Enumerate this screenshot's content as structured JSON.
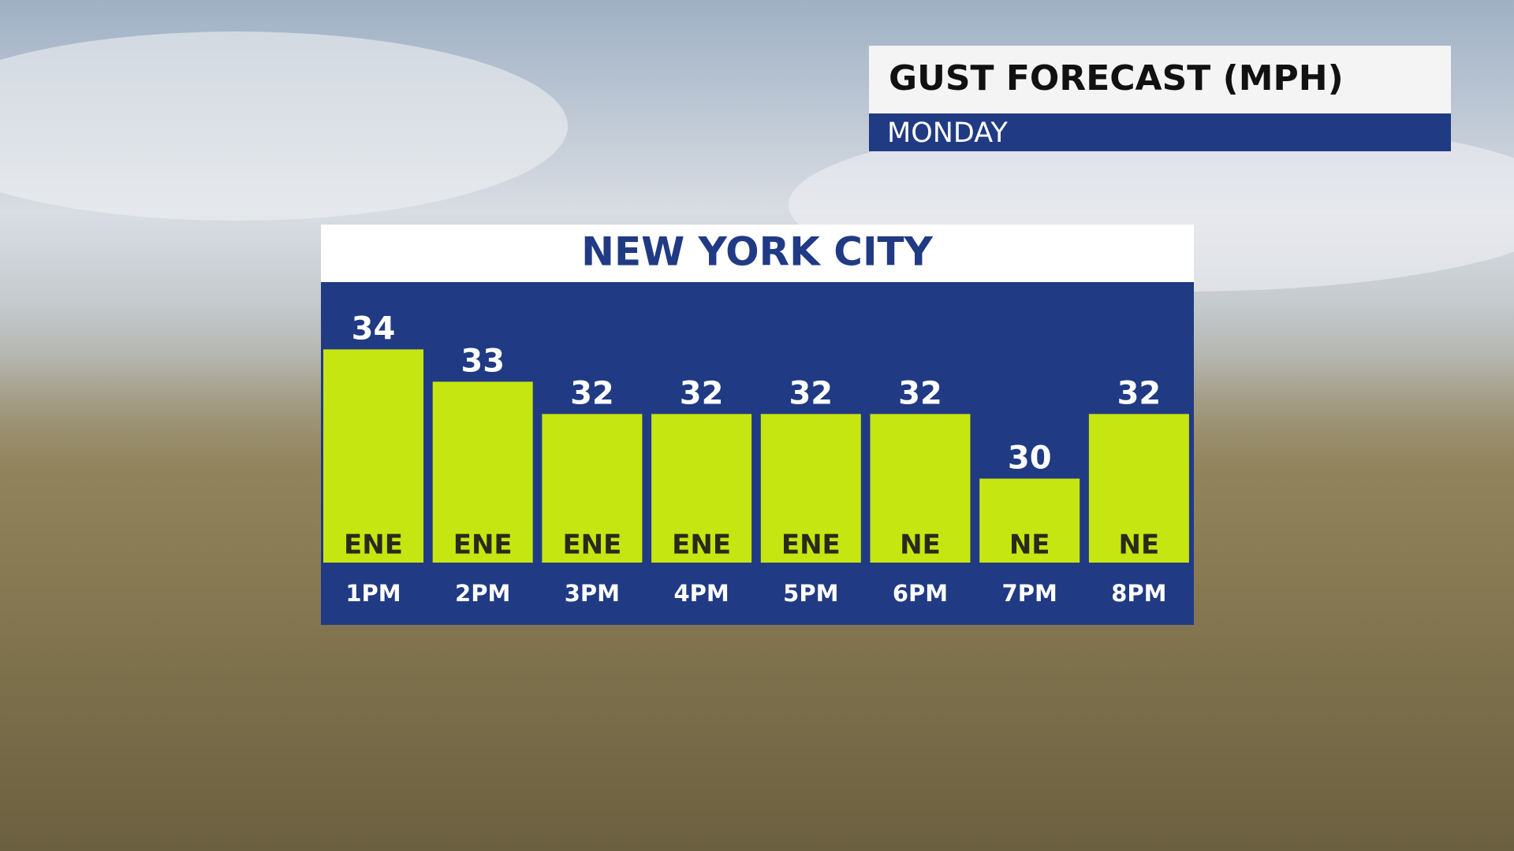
{
  "chart_data": {
    "type": "bar",
    "title": "GUST FORECAST (MPH)",
    "subtitle": "MONDAY",
    "location": "NEW YORK CITY",
    "categories": [
      "1PM",
      "2PM",
      "3PM",
      "4PM",
      "5PM",
      "6PM",
      "7PM",
      "8PM"
    ],
    "values": [
      34,
      33,
      32,
      32,
      32,
      32,
      30,
      32
    ],
    "directions": [
      "ENE",
      "ENE",
      "ENE",
      "ENE",
      "ENE",
      "NE",
      "NE",
      "NE"
    ],
    "color": "#c6e612",
    "ylim": [
      27.4,
      35.4
    ]
  }
}
